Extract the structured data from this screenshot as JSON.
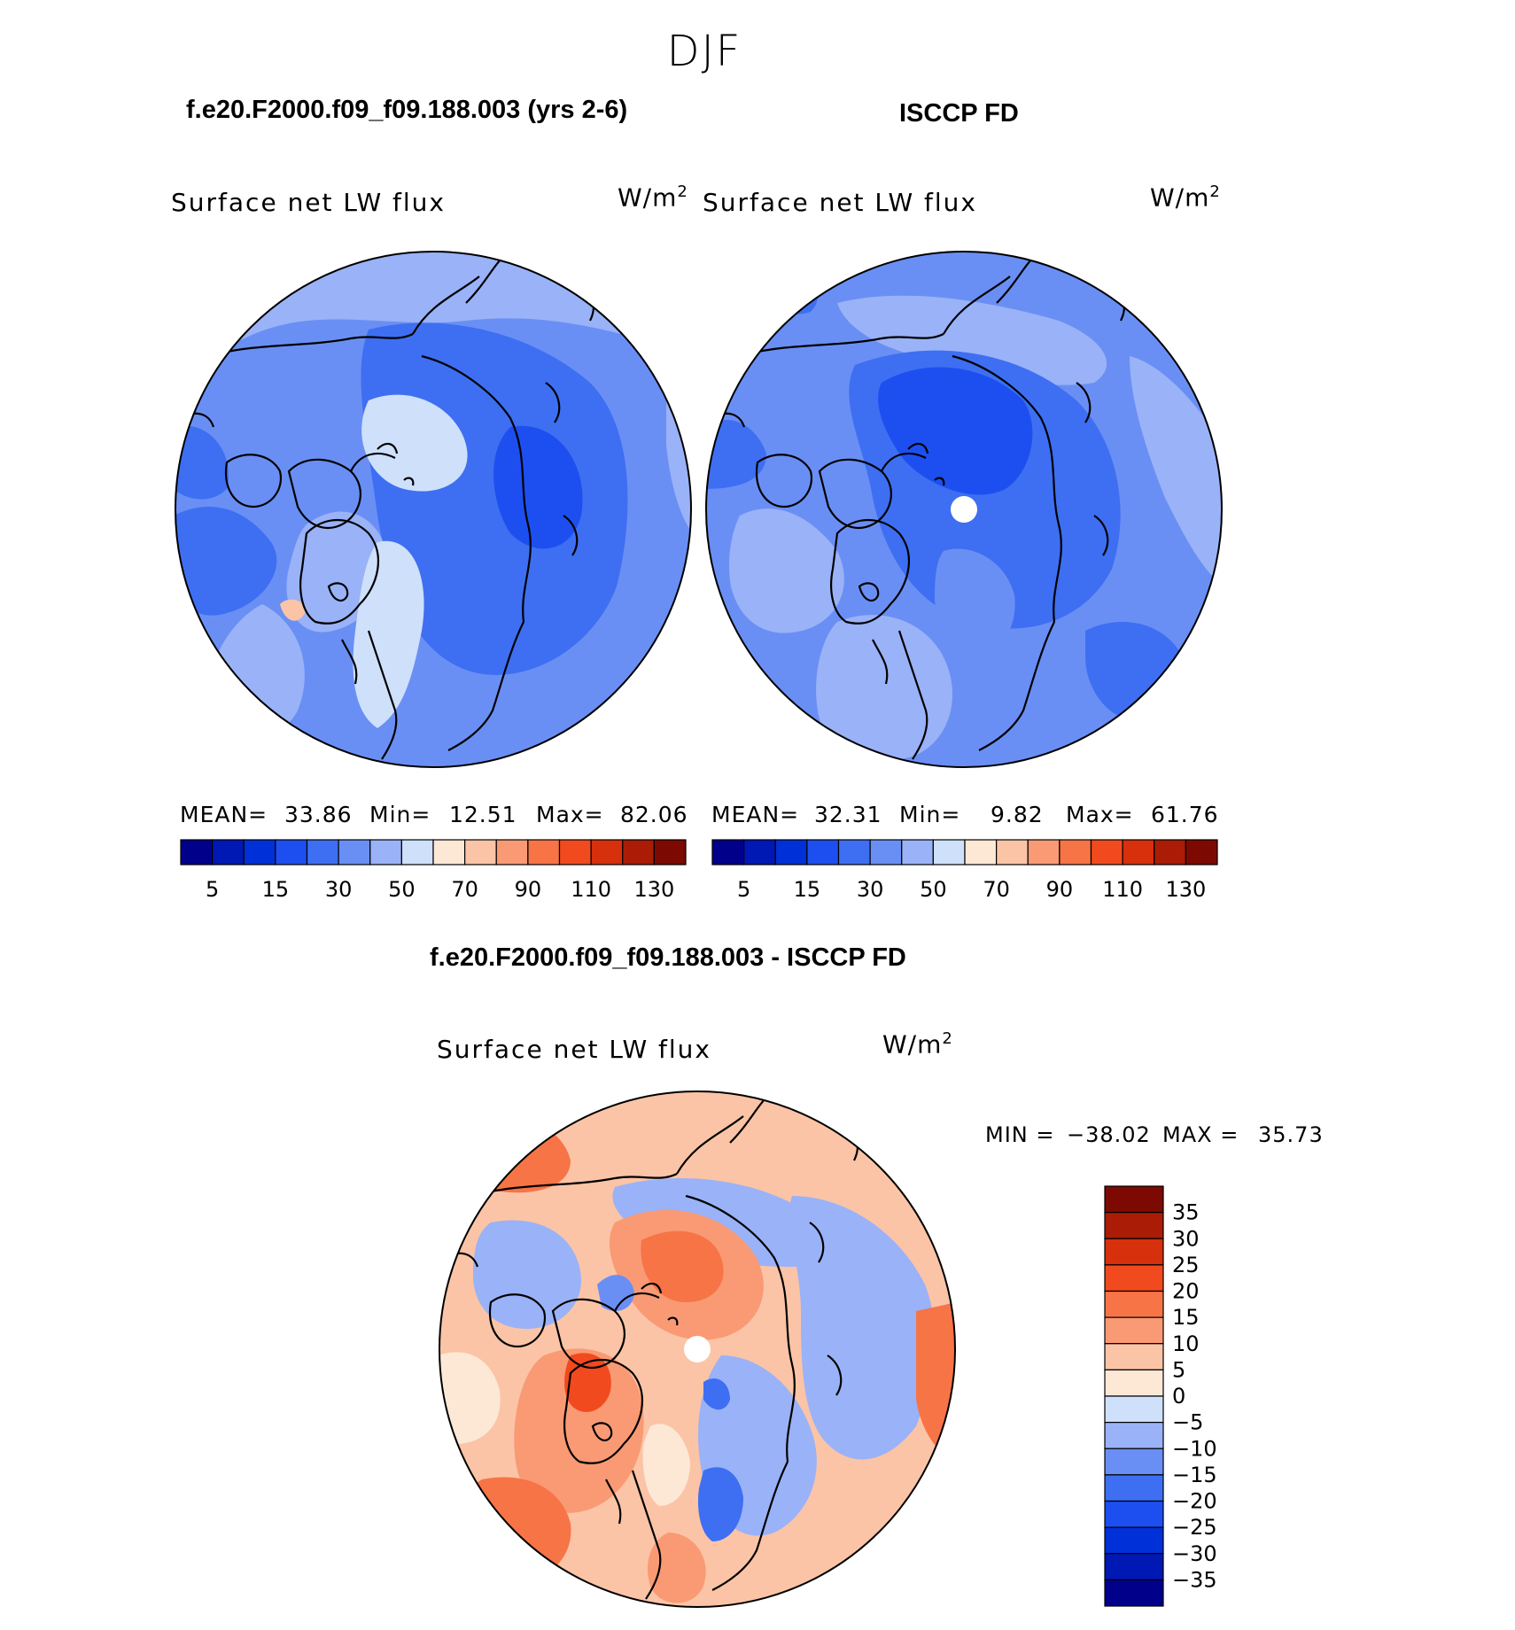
{
  "season_title": "DJF",
  "panels": [
    {
      "case_title": "f.e20.F2000.f09_f09.188.003 (yrs 2-6)",
      "variable": "Surface net LW flux",
      "units": "W/m",
      "units_sup": "2",
      "stats": {
        "mean_label": "MEAN=",
        "mean": "33.86",
        "min_label": "Min=",
        "min": "12.51",
        "max_label": "Max=",
        "max": "82.06"
      }
    },
    {
      "case_title": "ISCCP FD",
      "variable": "Surface net LW flux",
      "units": "W/m",
      "units_sup": "2",
      "stats": {
        "mean_label": "MEAN=",
        "mean": "32.31",
        "min_label": "Min=",
        "min": "9.82",
        "max_label": "Max=",
        "max": "61.76"
      }
    }
  ],
  "colorbar_abs": {
    "colors": [
      "#00008b",
      "#0018b4",
      "#0030d8",
      "#1d4ff0",
      "#3e6ff2",
      "#6a8ff4",
      "#9ab2f7",
      "#cfe0fb",
      "#fde8d6",
      "#fbc4a6",
      "#f99a74",
      "#f77446",
      "#f14a1e",
      "#d7300c",
      "#aa1c06",
      "#7c0a02"
    ],
    "tick_labels": [
      "5",
      "15",
      "30",
      "50",
      "70",
      "90",
      "110",
      "130"
    ]
  },
  "difference": {
    "case_title": "f.e20.F2000.f09_f09.188.003 - ISCCP FD",
    "variable": "Surface net LW flux",
    "units": "W/m",
    "units_sup": "2",
    "stats": {
      "min_label": "MIN =",
      "min": "−38.02",
      "max_label": "MAX =",
      "max": "35.73"
    },
    "colorbar": {
      "colors": [
        "#7c0a02",
        "#aa1c06",
        "#d7300c",
        "#f14a1e",
        "#f77446",
        "#f99a74",
        "#fbc4a6",
        "#fde8d6",
        "#cfe0fb",
        "#9ab2f7",
        "#6a8ff4",
        "#3e6ff2",
        "#1d4ff0",
        "#0030d8",
        "#0018b4",
        "#00008b"
      ],
      "tick_labels": [
        "35",
        "30",
        "25",
        "20",
        "15",
        "10",
        "5",
        "0",
        "−5",
        "−10",
        "−15",
        "−20",
        "−25",
        "−30",
        "−35"
      ]
    }
  }
}
